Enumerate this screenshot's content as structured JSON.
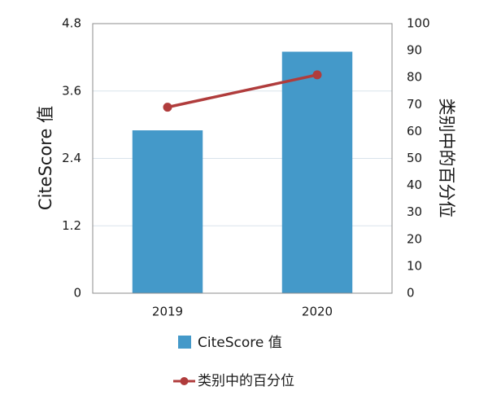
{
  "chart_data": {
    "type": "bar",
    "categories": [
      "2019",
      "2020"
    ],
    "series": [
      {
        "name": "CiteScore 值",
        "type": "bar",
        "axis": "left",
        "values": [
          2.9,
          4.3
        ],
        "color": "#4499c9"
      },
      {
        "name": "类别中的百分位",
        "type": "line",
        "axis": "right",
        "values": [
          69,
          81
        ],
        "color": "#b03c3c"
      }
    ],
    "ylabel": "CiteScore 值",
    "y2label": "类别中的百分位",
    "ylim": [
      0,
      4.8
    ],
    "y2lim": [
      0,
      100
    ],
    "yticks": [
      "0",
      "1.2",
      "2.4",
      "3.6",
      "4.8"
    ],
    "y2ticks": [
      "0",
      "10",
      "20",
      "30",
      "40",
      "50",
      "60",
      "70",
      "80",
      "90",
      "100"
    ],
    "grid": true,
    "legend_position": "bottom"
  }
}
